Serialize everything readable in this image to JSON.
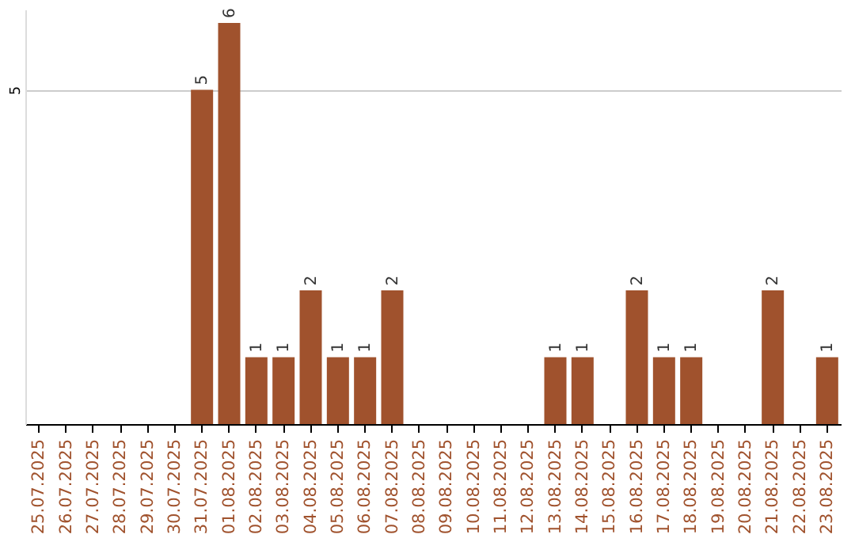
{
  "chart_data": {
    "type": "bar",
    "categories": [
      "25.07.2025",
      "26.07.2025",
      "27.07.2025",
      "28.07.2025",
      "29.07.2025",
      "30.07.2025",
      "31.07.2025",
      "01.08.2025",
      "02.08.2025",
      "03.08.2025",
      "04.08.2025",
      "05.08.2025",
      "06.08.2025",
      "07.08.2025",
      "08.08.2025",
      "09.08.2025",
      "10.08.2025",
      "11.08.2025",
      "12.08.2025",
      "13.08.2025",
      "14.08.2025",
      "15.08.2025",
      "16.08.2025",
      "17.08.2025",
      "18.08.2025",
      "19.08.2025",
      "20.08.2025",
      "21.08.2025",
      "22.08.2025",
      "23.08.2025"
    ],
    "values": [
      null,
      null,
      null,
      null,
      null,
      null,
      5,
      6,
      1,
      1,
      2,
      1,
      1,
      2,
      null,
      null,
      null,
      null,
      null,
      1,
      1,
      null,
      2,
      1,
      1,
      null,
      null,
      2,
      null,
      1
    ],
    "color": "#a0522d",
    "ylim": [
      0,
      6.2
    ],
    "yticks": [
      5
    ],
    "grid": "y",
    "data_labels": true
  }
}
